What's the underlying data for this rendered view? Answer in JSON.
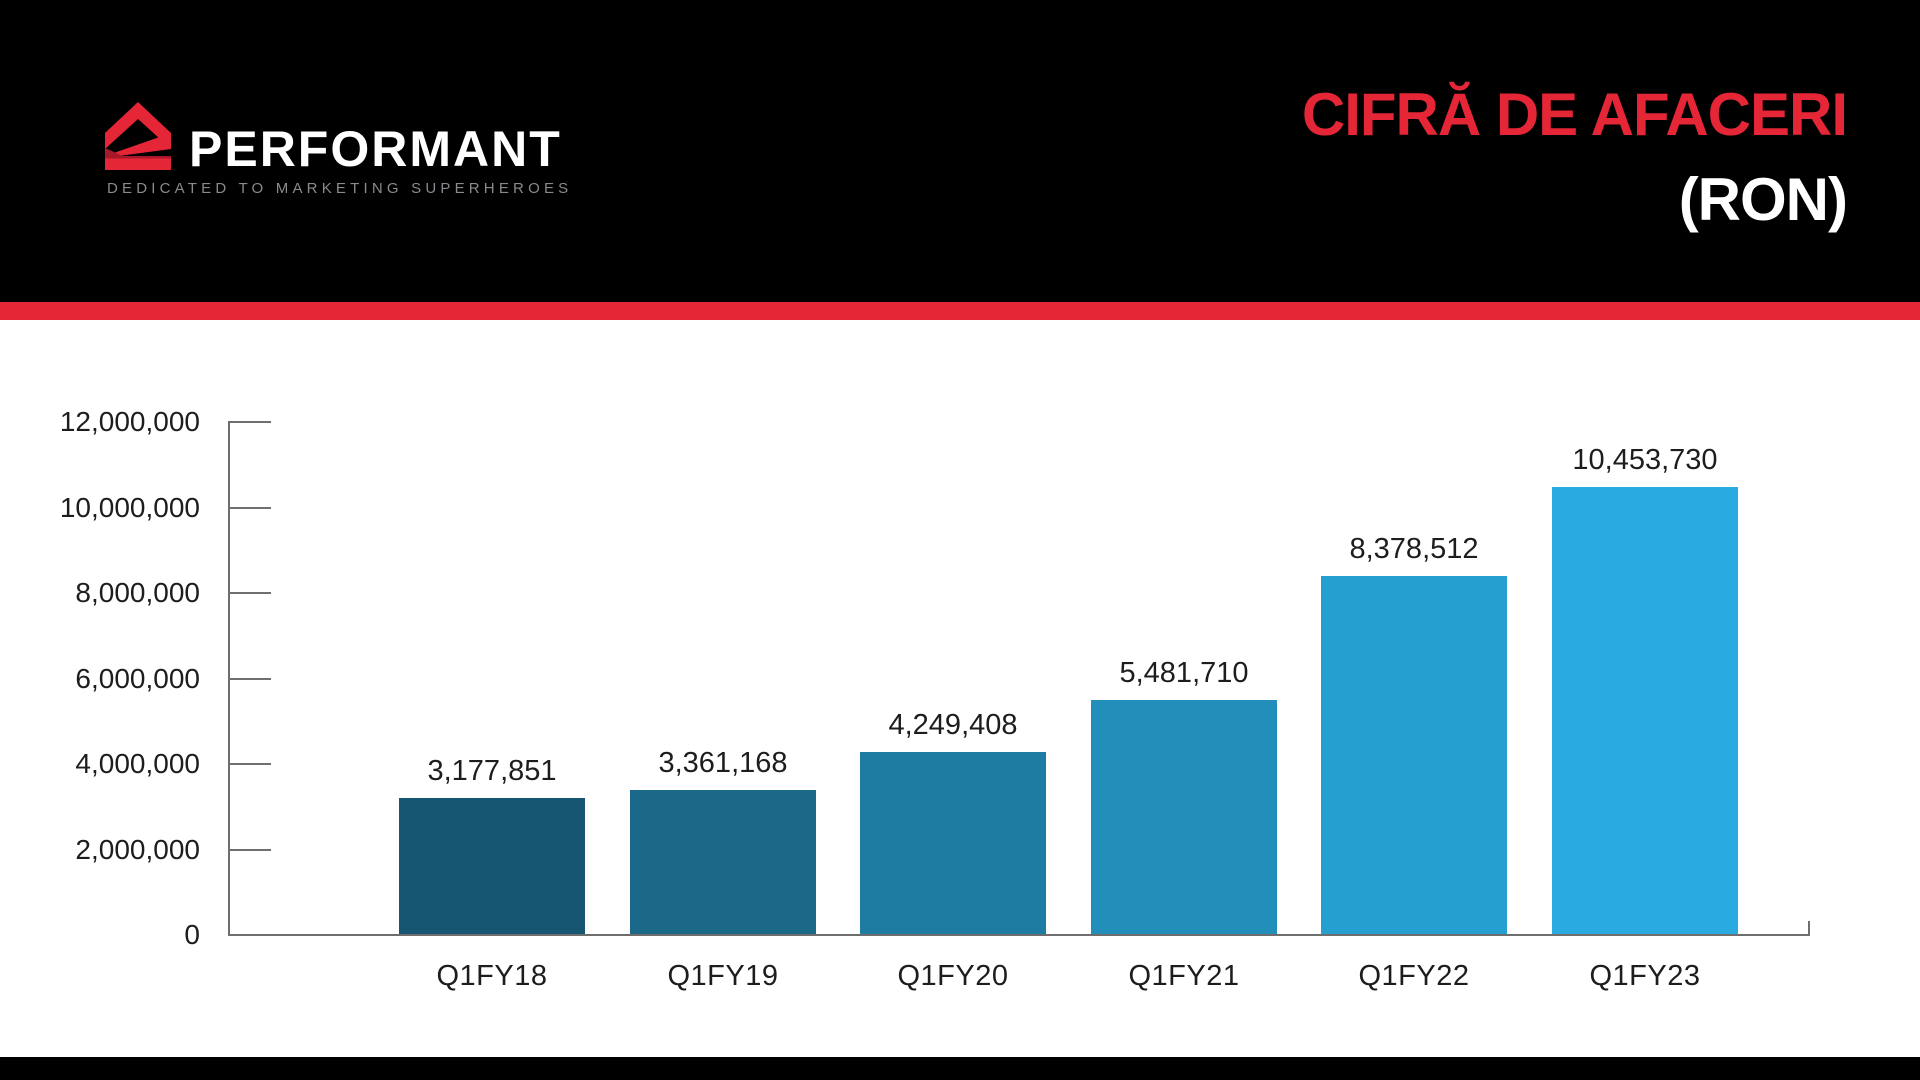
{
  "header": {
    "brand": "PERFORMANT",
    "tagline": "DEDICATED TO MARKETING SUPERHEROES",
    "title_line1": "CIFRĂ DE AFACERI",
    "title_line2": "(RON)"
  },
  "colors": {
    "accent_red": "#e52637",
    "logo_dark_red": "#a8182b",
    "header_bg": "#000000",
    "footer_bg": "#000000",
    "text_dark": "#1d1d1d",
    "axis_gray": "#6e6e6e",
    "brand_white": "#ffffff",
    "tagline_gray": "#8a8a8f"
  },
  "chart_data": {
    "type": "bar",
    "title": "CIFRĂ DE AFACERI (RON)",
    "categories": [
      "Q1FY18",
      "Q1FY19",
      "Q1FY20",
      "Q1FY21",
      "Q1FY22",
      "Q1FY23"
    ],
    "values": [
      3177851,
      3361168,
      4249408,
      5481710,
      8378512,
      10453730
    ],
    "value_labels": [
      "3,177,851",
      "3,361,168",
      "4,249,408",
      "5,481,710",
      "8,378,512",
      "10,453,730"
    ],
    "bar_colors": [
      "#175672",
      "#1b6889",
      "#1e7ca3",
      "#218fba",
      "#259fd0",
      "#29abe2"
    ],
    "xlabel": "",
    "ylabel": "",
    "ylim": [
      0,
      12000000
    ],
    "y_ticks": [
      {
        "value": 12000000,
        "label": "12,000,000"
      },
      {
        "value": 10000000,
        "label": "10,000,000"
      },
      {
        "value": 8000000,
        "label": "8,000,000"
      },
      {
        "value": 6000000,
        "label": "6,000,000"
      },
      {
        "value": 4000000,
        "label": "4,000,000"
      },
      {
        "value": 2000000,
        "label": "2,000,000"
      },
      {
        "value": 0,
        "label": "0"
      }
    ],
    "grid": false,
    "legend": false,
    "data_labels": true
  }
}
